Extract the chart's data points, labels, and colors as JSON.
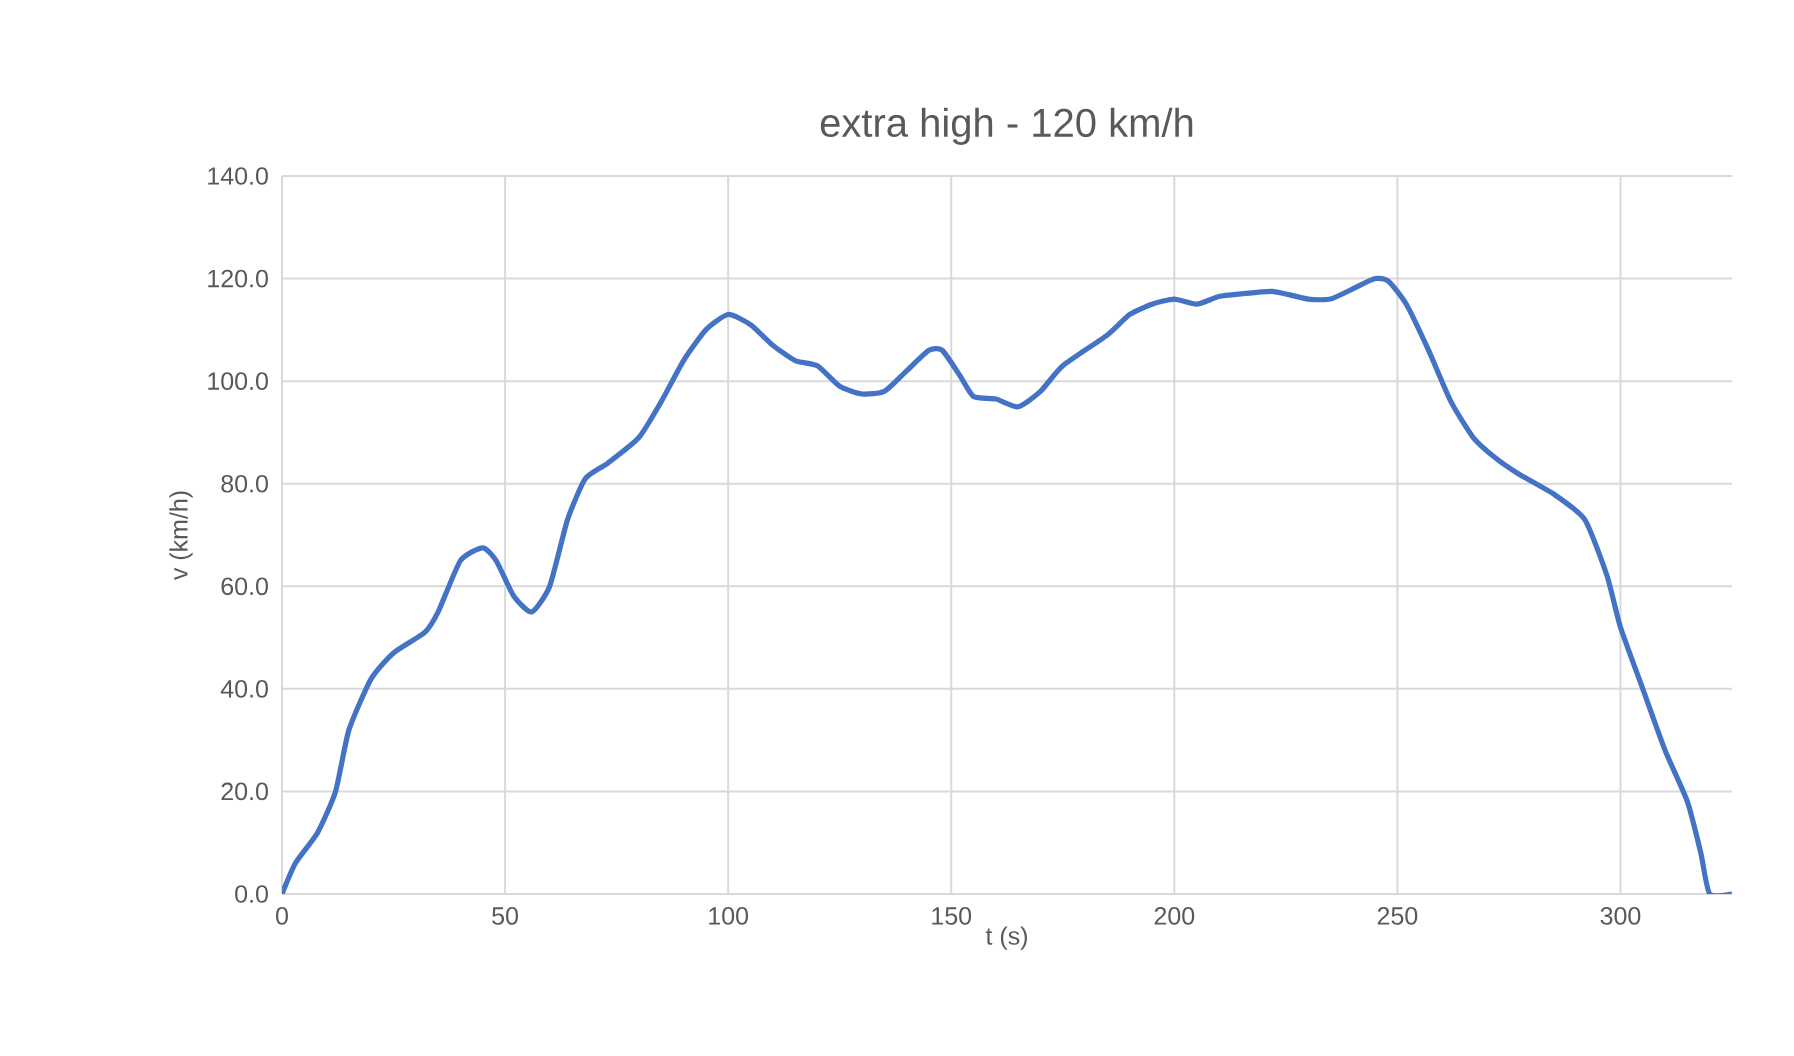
{
  "chart_data": {
    "type": "line",
    "title": "extra high - 120 km/h",
    "xlabel": "t (s)",
    "ylabel": "v (km/h)",
    "xlim": [
      0,
      325
    ],
    "xticks": [
      0,
      50,
      100,
      150,
      200,
      250,
      300
    ],
    "ylim": [
      0,
      140
    ],
    "yticks": [
      {
        "value": 0,
        "label": "0.0"
      },
      {
        "value": 20,
        "label": "20.0"
      },
      {
        "value": 40,
        "label": "40.0"
      },
      {
        "value": 60,
        "label": "60.0"
      },
      {
        "value": 80,
        "label": "80.0"
      },
      {
        "value": 100,
        "label": "100.0"
      },
      {
        "value": 120,
        "label": "120.0"
      },
      {
        "value": 140,
        "label": "140.0"
      }
    ],
    "grid": true,
    "marker": "none",
    "line_style": "solid",
    "series": [
      {
        "color": "#4472c4",
        "x": [
          0,
          3,
          8,
          12,
          15,
          20,
          25,
          32,
          35,
          40,
          45,
          48,
          52,
          56,
          60,
          64,
          68,
          73,
          80,
          85,
          90,
          95,
          100,
          105,
          110,
          115,
          120,
          125,
          130,
          135,
          140,
          145,
          148,
          152,
          155,
          160,
          165,
          170,
          175,
          185,
          190,
          195,
          200,
          205,
          210,
          215,
          222,
          230,
          235,
          240,
          245,
          248,
          252,
          257,
          262,
          267,
          272,
          277,
          285,
          292,
          297,
          300,
          305,
          310,
          315,
          318,
          320,
          325
        ],
        "values": [
          0,
          6,
          12,
          20,
          32,
          42,
          47,
          51,
          55,
          65,
          67.5,
          65,
          58,
          55,
          60,
          73,
          81,
          84,
          89,
          96,
          104,
          110,
          113,
          111,
          107,
          104,
          103,
          99,
          97.5,
          98,
          102,
          106,
          106,
          101,
          97,
          96.5,
          95,
          98,
          103,
          109,
          113,
          115,
          116,
          115,
          116.5,
          117,
          117.5,
          116,
          116,
          118,
          120,
          119.5,
          115,
          106,
          96,
          89,
          85,
          82,
          78,
          73,
          62,
          52,
          40,
          28,
          18,
          8,
          0,
          0
        ]
      }
    ]
  }
}
